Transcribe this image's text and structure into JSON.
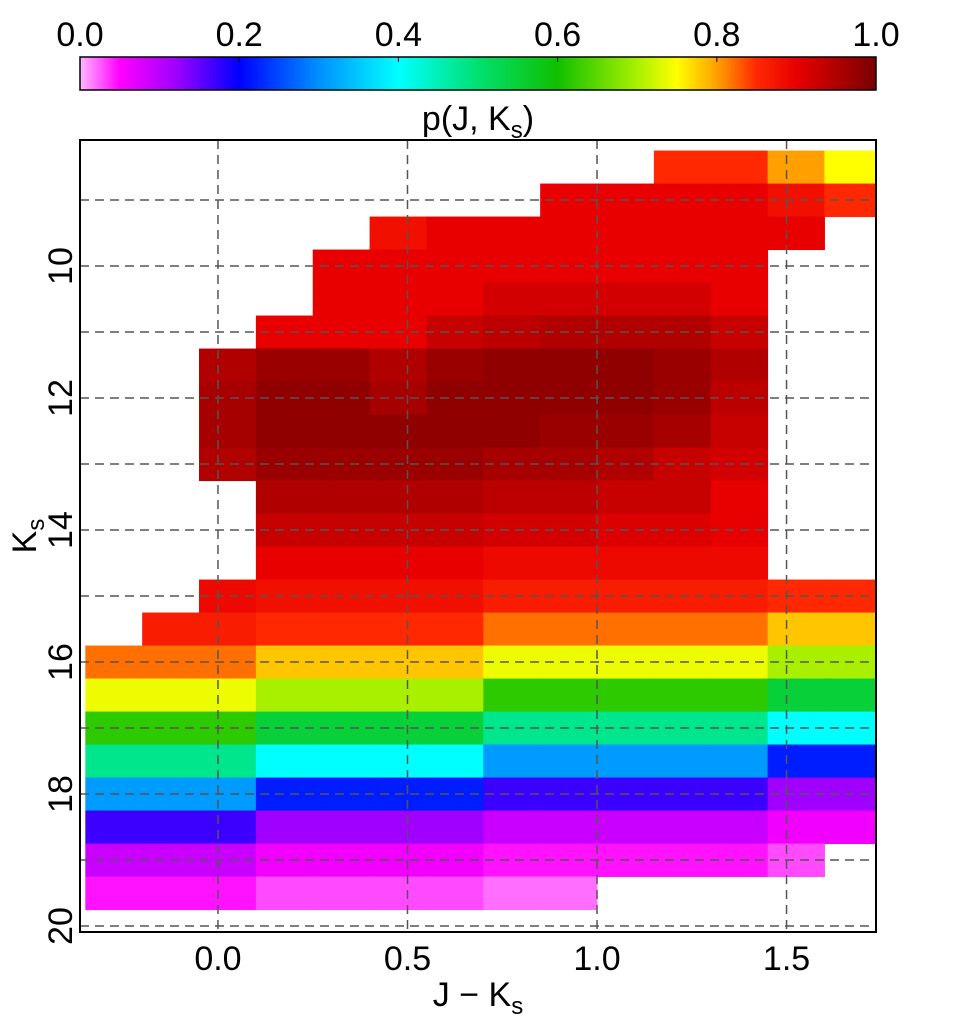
{
  "chart_data": {
    "type": "heatmap",
    "xlabel": {
      "text": "J − K",
      "sub": "s"
    },
    "ylabel": {
      "text": "K",
      "sub": "s"
    },
    "colorbar": {
      "label": {
        "text": "p(J, K",
        "sub": "s",
        "end": ")"
      },
      "lim": [
        0,
        1
      ],
      "ticks": [
        {
          "value": 0,
          "label": "0.0"
        },
        0.2,
        0.4,
        0.6,
        0.8,
        {
          "value": 1,
          "label": "1.0"
        }
      ]
    },
    "colormap": {
      "positions": [
        0,
        0.05,
        0.12,
        0.2,
        0.3,
        0.4,
        0.5,
        0.6,
        0.7,
        0.75,
        0.8,
        0.85,
        0.9,
        1
      ],
      "colors": [
        "#ffb8ff",
        "#ff00ff",
        "#a000ff",
        "#0000ff",
        "#0090ff",
        "#00ffff",
        "#00e070",
        "#10c000",
        "#a8f000",
        "#ffff00",
        "#ffa000",
        "#ff2800",
        "#e80000",
        "#7a0000"
      ]
    },
    "x_bins": [
      -0.35,
      -0.2,
      -0.05,
      0.1,
      0.25,
      0.4,
      0.55,
      0.7,
      0.85,
      1,
      1.15,
      1.3,
      1.45,
      1.6,
      1.75
    ],
    "y_bins": [
      8.25,
      8.75,
      9.25,
      9.75,
      10.25,
      10.75,
      11.25,
      11.75,
      12.25,
      12.75,
      13.25,
      13.75,
      14.25,
      14.75,
      15.25,
      15.75,
      16.25,
      16.75,
      17.25,
      17.75,
      18.25,
      18.75,
      19.25,
      19.75
    ],
    "z": [
      [
        null,
        null,
        null,
        null,
        null,
        null,
        null,
        null,
        null,
        null,
        0.85,
        0.85,
        0.8,
        0.75
      ],
      [
        null,
        null,
        null,
        null,
        null,
        null,
        null,
        null,
        0.9,
        0.9,
        0.9,
        0.9,
        0.88,
        0.85
      ],
      [
        null,
        null,
        null,
        null,
        null,
        0.88,
        0.9,
        0.9,
        0.9,
        0.9,
        0.9,
        0.9,
        0.9,
        null
      ],
      [
        null,
        null,
        null,
        null,
        0.9,
        0.9,
        0.9,
        0.9,
        0.9,
        0.9,
        0.9,
        0.9,
        null,
        null
      ],
      [
        null,
        null,
        null,
        null,
        0.9,
        0.9,
        0.9,
        0.92,
        0.92,
        0.92,
        0.92,
        0.9,
        null,
        null
      ],
      [
        null,
        null,
        null,
        0.9,
        0.9,
        0.9,
        0.93,
        0.94,
        0.95,
        0.95,
        0.95,
        0.93,
        null,
        null
      ],
      [
        null,
        null,
        0.95,
        0.97,
        0.97,
        0.95,
        0.97,
        0.98,
        0.98,
        0.98,
        0.97,
        0.95,
        null,
        null
      ],
      [
        null,
        null,
        0.96,
        0.98,
        0.98,
        0.96,
        0.98,
        0.98,
        0.98,
        0.98,
        0.97,
        0.94,
        null,
        null
      ],
      [
        null,
        null,
        0.96,
        0.98,
        0.98,
        0.98,
        0.98,
        0.98,
        0.97,
        0.97,
        0.96,
        0.93,
        null,
        null
      ],
      [
        null,
        null,
        0.95,
        0.97,
        0.97,
        0.97,
        0.97,
        0.96,
        0.96,
        0.95,
        0.93,
        0.92,
        null,
        null
      ],
      [
        null,
        null,
        null,
        0.95,
        0.95,
        0.95,
        0.95,
        0.94,
        0.94,
        0.93,
        0.93,
        0.9,
        null,
        null
      ],
      [
        null,
        null,
        null,
        0.93,
        0.93,
        0.93,
        0.93,
        0.92,
        0.92,
        0.91,
        0.91,
        0.9,
        null,
        null
      ],
      [
        null,
        null,
        null,
        0.9,
        0.9,
        0.9,
        0.9,
        0.89,
        0.89,
        0.89,
        0.89,
        0.89,
        null,
        null
      ],
      [
        null,
        null,
        0.89,
        0.88,
        0.88,
        0.88,
        0.88,
        0.865,
        0.865,
        0.865,
        0.865,
        0.865,
        0.85,
        0.85
      ],
      [
        null,
        0.865,
        0.865,
        0.85,
        0.85,
        0.85,
        0.85,
        0.82,
        0.82,
        0.82,
        0.82,
        0.82,
        0.78,
        0.78
      ],
      [
        0.82,
        0.82,
        0.82,
        0.78,
        0.78,
        0.78,
        0.78,
        0.74,
        0.74,
        0.74,
        0.74,
        0.74,
        0.7,
        0.7
      ],
      [
        0.74,
        0.74,
        0.74,
        0.7,
        0.7,
        0.7,
        0.7,
        0.62,
        0.62,
        0.62,
        0.62,
        0.62,
        0.55,
        0.55
      ],
      [
        0.62,
        0.62,
        0.62,
        0.55,
        0.55,
        0.55,
        0.55,
        0.48,
        0.48,
        0.48,
        0.48,
        0.48,
        0.4,
        0.4
      ],
      [
        0.48,
        0.48,
        0.48,
        0.4,
        0.4,
        0.4,
        0.4,
        0.31,
        0.31,
        0.31,
        0.31,
        0.31,
        0.22,
        0.22
      ],
      [
        0.31,
        0.31,
        0.31,
        0.22,
        0.22,
        0.22,
        0.22,
        0.17,
        0.17,
        0.17,
        0.17,
        0.17,
        0.12,
        0.12
      ],
      [
        0.17,
        0.17,
        0.17,
        0.12,
        0.12,
        0.12,
        0.12,
        0.09,
        0.09,
        0.09,
        0.09,
        0.09,
        0.06,
        0.06
      ],
      [
        0.09,
        0.09,
        0.09,
        0.06,
        0.06,
        0.06,
        0.06,
        0.045,
        0.045,
        0.045,
        0.045,
        0.045,
        0.03,
        null
      ],
      [
        0.045,
        0.045,
        0.045,
        0.03,
        0.03,
        0.03,
        0.03,
        0.02,
        0.02,
        null,
        null,
        null,
        null,
        null
      ]
    ],
    "xlim": [
      -0.364,
      1.736
    ],
    "ylim": [
      20.09,
      8.09
    ],
    "xticks": [
      {
        "value": 0,
        "label": "0.0"
      },
      0.5,
      {
        "value": 1,
        "label": "1.0"
      },
      1.5
    ],
    "yticks": [
      10,
      12,
      14,
      16,
      18,
      20
    ],
    "yminor": [
      9,
      11,
      13,
      15,
      17,
      19
    ],
    "grid": true
  }
}
